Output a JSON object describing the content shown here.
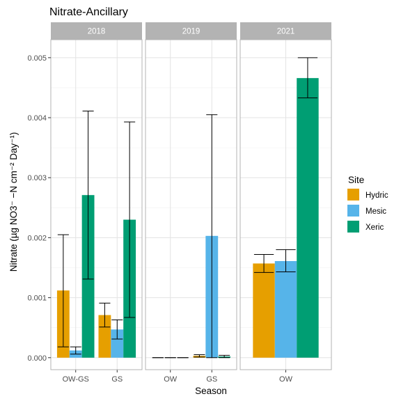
{
  "chart_data": {
    "type": "bar",
    "title": "Nitrate-Ancillary",
    "xlabel": "Season",
    "ylabel": "Nitrate (µg NO3⁻ −N cm⁻² Day⁻¹)",
    "ylim": [
      -0.0002,
      0.0053
    ],
    "y_ticks": [
      0.0,
      0.001,
      0.002,
      0.003,
      0.004,
      0.005
    ],
    "y_tick_labels": [
      "0.000",
      "0.001",
      "0.002",
      "0.003",
      "0.004",
      "0.005"
    ],
    "grid": true,
    "legend": {
      "title": "Site",
      "position": "right",
      "entries": [
        {
          "name": "Hydric",
          "color": "#E69F00"
        },
        {
          "name": "Mesic",
          "color": "#56B4E9"
        },
        {
          "name": "Xeric",
          "color": "#009E73"
        }
      ]
    },
    "facets": [
      {
        "label": "2018",
        "categories": [
          "OW-GS",
          "GS"
        ],
        "series": [
          {
            "name": "Hydric",
            "values": [
              0.00112,
              0.00071
            ],
            "err_low": [
              0.00018,
              0.00051
            ],
            "err_high": [
              0.00205,
              0.00091
            ]
          },
          {
            "name": "Mesic",
            "values": [
              0.00012,
              0.00047
            ],
            "err_low": [
              6e-05,
              0.00031
            ],
            "err_high": [
              0.00018,
              0.00063
            ]
          },
          {
            "name": "Xeric",
            "values": [
              0.00271,
              0.0023
            ],
            "err_low": [
              0.00131,
              0.00067
            ],
            "err_high": [
              0.00411,
              0.00393
            ]
          }
        ]
      },
      {
        "label": "2019",
        "categories": [
          "OW",
          "GS"
        ],
        "series": [
          {
            "name": "Hydric",
            "values": [
              0.0,
              3e-05
            ],
            "err_low": [
              0.0,
              1e-05
            ],
            "err_high": [
              0.0,
              5e-05
            ]
          },
          {
            "name": "Mesic",
            "values": [
              0.0,
              0.00203
            ],
            "err_low": [
              0.0,
              0.0
            ],
            "err_high": [
              0.0,
              0.00405
            ]
          },
          {
            "name": "Xeric",
            "values": [
              0.0,
              2e-05
            ],
            "err_low": [
              0.0,
              0.0
            ],
            "err_high": [
              0.0,
              4e-05
            ]
          }
        ]
      },
      {
        "label": "2021",
        "categories": [
          "OW"
        ],
        "series": [
          {
            "name": "Hydric",
            "values": [
              0.00157
            ],
            "err_low": [
              0.00142
            ],
            "err_high": [
              0.00172
            ]
          },
          {
            "name": "Mesic",
            "values": [
              0.00161
            ],
            "err_low": [
              0.00143
            ],
            "err_high": [
              0.0018
            ]
          },
          {
            "name": "Xeric",
            "values": [
              0.00466
            ],
            "err_low": [
              0.00433
            ],
            "err_high": [
              0.005
            ]
          }
        ]
      }
    ]
  }
}
